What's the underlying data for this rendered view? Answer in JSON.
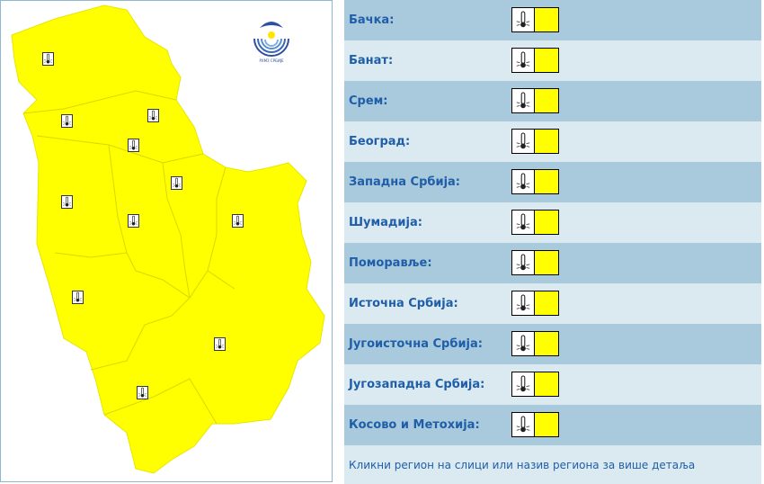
{
  "colors": {
    "warning_level": "#ffff00",
    "label": "#1f5ea8",
    "row_dark": "#a9c9dc",
    "row_light": "#dbe9f1"
  },
  "logo": {
    "text": "РХМЗ СРБИЈЕ"
  },
  "regions": [
    {
      "label": "Бачка:",
      "icon": "thermometer-heat-icon",
      "level_color": "#ffff00"
    },
    {
      "label": "Банат:",
      "icon": "thermometer-heat-icon",
      "level_color": "#ffff00"
    },
    {
      "label": "Срем:",
      "icon": "thermometer-heat-icon",
      "level_color": "#ffff00"
    },
    {
      "label": "Београд:",
      "icon": "thermometer-heat-icon",
      "level_color": "#ffff00"
    },
    {
      "label": "Западна Србија:",
      "icon": "thermometer-heat-icon",
      "level_color": "#ffff00"
    },
    {
      "label": "Шумадија:",
      "icon": "thermometer-heat-icon",
      "level_color": "#ffff00"
    },
    {
      "label": "Поморавље:",
      "icon": "thermometer-heat-icon",
      "level_color": "#ffff00"
    },
    {
      "label": "Источна Србија:",
      "icon": "thermometer-heat-icon",
      "level_color": "#ffff00"
    },
    {
      "label": "Југоисточна Србија:",
      "icon": "thermometer-heat-icon",
      "level_color": "#ffff00"
    },
    {
      "label": "Југозападна Србија:",
      "icon": "thermometer-heat-icon",
      "level_color": "#ffff00"
    },
    {
      "label": "Косово и Метохија:",
      "icon": "thermometer-heat-icon",
      "level_color": "#ffff00"
    }
  ],
  "footer": "Кликни регион на слици или назив региона за више детаља"
}
